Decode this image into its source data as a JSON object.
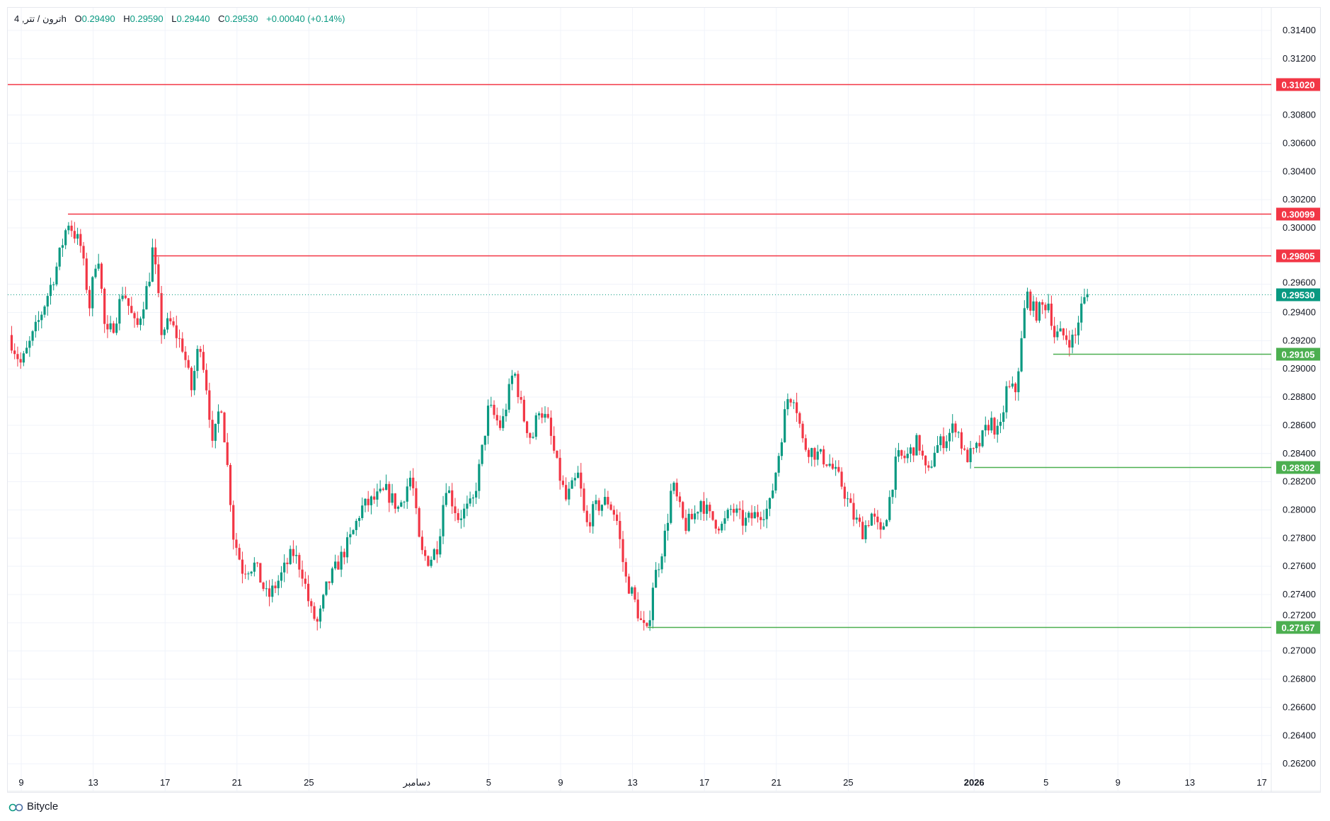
{
  "legend": {
    "symbol": "ترون / تتر, 4h",
    "o_label": "O",
    "o": "0.29490",
    "h_label": "H",
    "h": "0.29590",
    "l_label": "L",
    "l": "0.29440",
    "c_label": "C",
    "c": "0.29530",
    "change": "+0.00040 (+0.14%)"
  },
  "footer": {
    "brand": "Bitycle"
  },
  "colors": {
    "up": "#089981",
    "down": "#f23645",
    "resistance": "#f23645",
    "support": "#4caf50",
    "last": "#089981",
    "grid": "#f0f3fa"
  },
  "chart_data": {
    "type": "candlestick",
    "interval": "4h",
    "x_unit": "days since Nov 9",
    "ylim": [
      0.261,
      0.3155
    ],
    "y_ticks": [
      "0.26200",
      "0.26400",
      "0.26600",
      "0.26800",
      "0.27000",
      "0.27200",
      "0.27400",
      "0.27600",
      "0.27800",
      "0.28000",
      "0.28200",
      "0.28400",
      "0.28600",
      "0.28800",
      "0.29000",
      "0.29200",
      "0.29400",
      "0.29600",
      "0.30000",
      "0.30200",
      "0.30400",
      "0.30600",
      "0.30800",
      "0.31200",
      "0.31400"
    ],
    "x_ticks": [
      {
        "label": "9",
        "day": 0
      },
      {
        "label": "13",
        "day": 4
      },
      {
        "label": "17",
        "day": 8
      },
      {
        "label": "21",
        "day": 12
      },
      {
        "label": "25",
        "day": 16
      },
      {
        "label": "دسامبر",
        "day": 22
      },
      {
        "label": "5",
        "day": 26
      },
      {
        "label": "9",
        "day": 30
      },
      {
        "label": "13",
        "day": 34
      },
      {
        "label": "17",
        "day": 38
      },
      {
        "label": "21",
        "day": 42
      },
      {
        "label": "25",
        "day": 46
      },
      {
        "label": "2026",
        "day": 53,
        "bold": true
      },
      {
        "label": "5",
        "day": 57
      },
      {
        "label": "9",
        "day": 61
      },
      {
        "label": "13",
        "day": 65
      },
      {
        "label": "17",
        "day": 69
      }
    ],
    "price_path": [
      [
        -0.7,
        0.2924
      ],
      [
        0,
        0.2903
      ],
      [
        0.95,
        0.2933
      ],
      [
        1.9,
        0.2969
      ],
      [
        2.6,
        0.3005
      ],
      [
        3.3,
        0.2987
      ],
      [
        3.8,
        0.2945
      ],
      [
        4.25,
        0.2987
      ],
      [
        4.7,
        0.2921
      ],
      [
        5.2,
        0.2933
      ],
      [
        5.67,
        0.2957
      ],
      [
        6.4,
        0.2927
      ],
      [
        7.1,
        0.2963
      ],
      [
        7.33,
        0.2987
      ],
      [
        7.8,
        0.2927
      ],
      [
        8.27,
        0.2933
      ],
      [
        9.0,
        0.2915
      ],
      [
        9.46,
        0.2885
      ],
      [
        9.93,
        0.2921
      ],
      [
        10.4,
        0.2879
      ],
      [
        10.64,
        0.2843
      ],
      [
        11.1,
        0.2879
      ],
      [
        11.6,
        0.2813
      ],
      [
        11.8,
        0.2782
      ],
      [
        12.3,
        0.2758
      ],
      [
        13.0,
        0.2761
      ],
      [
        13.7,
        0.2737
      ],
      [
        14.4,
        0.2752
      ],
      [
        15.1,
        0.277
      ],
      [
        15.6,
        0.2758
      ],
      [
        16.1,
        0.2728
      ],
      [
        16.5,
        0.2719
      ],
      [
        17.0,
        0.2746
      ],
      [
        17.7,
        0.2764
      ],
      [
        18.4,
        0.2782
      ],
      [
        18.9,
        0.2801
      ],
      [
        19.6,
        0.2807
      ],
      [
        20.3,
        0.2813
      ],
      [
        21.0,
        0.2801
      ],
      [
        21.7,
        0.2825
      ],
      [
        22.2,
        0.277
      ],
      [
        22.7,
        0.2764
      ],
      [
        23.2,
        0.2776
      ],
      [
        23.6,
        0.2819
      ],
      [
        24.3,
        0.2795
      ],
      [
        25.1,
        0.2804
      ],
      [
        25.5,
        0.2831
      ],
      [
        26.0,
        0.2873
      ],
      [
        26.7,
        0.2858
      ],
      [
        27.4,
        0.29
      ],
      [
        27.9,
        0.2867
      ],
      [
        28.4,
        0.2849
      ],
      [
        28.8,
        0.2873
      ],
      [
        29.3,
        0.2861
      ],
      [
        29.8,
        0.2831
      ],
      [
        30.3,
        0.2807
      ],
      [
        31.0,
        0.2825
      ],
      [
        31.4,
        0.2788
      ],
      [
        31.9,
        0.2801
      ],
      [
        32.6,
        0.2807
      ],
      [
        33.1,
        0.2795
      ],
      [
        33.6,
        0.2752
      ],
      [
        34.0,
        0.274
      ],
      [
        34.5,
        0.2719
      ],
      [
        34.85,
        0.2711
      ],
      [
        35.1,
        0.2746
      ],
      [
        35.5,
        0.2764
      ],
      [
        35.9,
        0.2788
      ],
      [
        36.2,
        0.2819
      ],
      [
        36.9,
        0.2788
      ],
      [
        37.4,
        0.2795
      ],
      [
        37.8,
        0.2807
      ],
      [
        38.3,
        0.2795
      ],
      [
        39.0,
        0.2788
      ],
      [
        39.5,
        0.2801
      ],
      [
        40.2,
        0.2791
      ],
      [
        40.9,
        0.2797
      ],
      [
        41.6,
        0.2801
      ],
      [
        42.1,
        0.2837
      ],
      [
        42.6,
        0.2879
      ],
      [
        43.0,
        0.2882
      ],
      [
        43.5,
        0.2846
      ],
      [
        44.2,
        0.284
      ],
      [
        44.9,
        0.2834
      ],
      [
        45.6,
        0.2819
      ],
      [
        46.3,
        0.2795
      ],
      [
        46.8,
        0.2785
      ],
      [
        47.3,
        0.2797
      ],
      [
        47.8,
        0.2782
      ],
      [
        48.2,
        0.2801
      ],
      [
        48.7,
        0.2837
      ],
      [
        49.2,
        0.2837
      ],
      [
        49.9,
        0.2849
      ],
      [
        50.4,
        0.2822
      ],
      [
        50.8,
        0.2843
      ],
      [
        51.5,
        0.2852
      ],
      [
        52.0,
        0.2861
      ],
      [
        52.5,
        0.2837
      ],
      [
        53.0,
        0.284
      ],
      [
        53.4,
        0.2849
      ],
      [
        53.9,
        0.2864
      ],
      [
        54.4,
        0.2852
      ],
      [
        54.8,
        0.2885
      ],
      [
        55.3,
        0.2885
      ],
      [
        55.6,
        0.2915
      ],
      [
        55.9,
        0.2954
      ],
      [
        56.4,
        0.2939
      ],
      [
        56.9,
        0.2945
      ],
      [
        57.2,
        0.2948
      ],
      [
        57.4,
        0.2924
      ],
      [
        57.9,
        0.2924
      ],
      [
        58.3,
        0.2921
      ],
      [
        58.6,
        0.2921
      ],
      [
        58.9,
        0.2942
      ],
      [
        59.3,
        0.2953
      ]
    ],
    "levels": [
      {
        "price": 0.3102,
        "label": "0.31020",
        "kind": "resistance",
        "from_day": null
      },
      {
        "price": 0.30099,
        "label": "0.30099",
        "kind": "resistance",
        "from_day": 2.6
      },
      {
        "price": 0.29805,
        "label": "0.29805",
        "kind": "resistance",
        "from_day": 7.33
      },
      {
        "price": 0.2953,
        "label": "0.29530",
        "kind": "last",
        "from_day": null
      },
      {
        "price": 0.29105,
        "label": "0.29105",
        "kind": "support",
        "from_day": 57.4
      },
      {
        "price": 0.28302,
        "label": "0.28302",
        "kind": "support",
        "from_day": 53.0
      },
      {
        "price": 0.27167,
        "label": "0.27167",
        "kind": "support",
        "from_day": 34.85
      }
    ]
  }
}
